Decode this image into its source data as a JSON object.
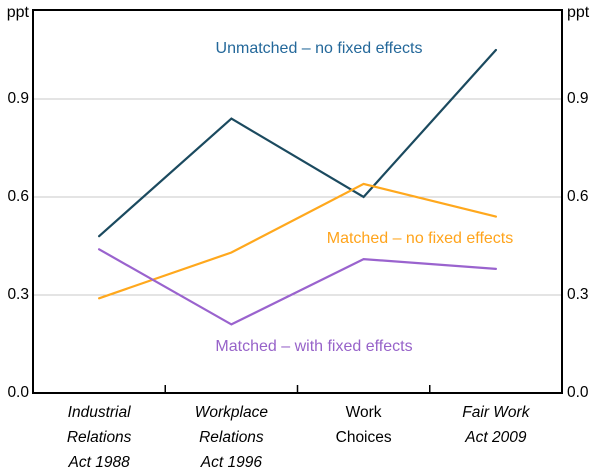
{
  "chart_data": {
    "type": "line",
    "title": "",
    "unit": "ppt",
    "xlabel": "",
    "ylabel": "ppt",
    "ylim": [
      0,
      1.17
    ],
    "grid": "horizontal",
    "yticks": [
      {
        "label": "0.0",
        "value": 0.0
      },
      {
        "label": "0.3",
        "value": 0.3
      },
      {
        "label": "0.6",
        "value": 0.6
      },
      {
        "label": "0.9",
        "value": 0.9
      }
    ],
    "categories": [
      {
        "lines": [
          "Industrial",
          "Relations",
          "Act 1988"
        ],
        "italic": true
      },
      {
        "lines": [
          "Workplace",
          "Relations",
          "Act 1996"
        ],
        "italic": true
      },
      {
        "lines": [
          "Work",
          "Choices"
        ],
        "italic": false
      },
      {
        "lines": [
          "Fair Work",
          "Act 2009"
        ],
        "italic": true
      }
    ],
    "series": [
      {
        "name": "Unmatched – no fixed effects",
        "values": [
          0.48,
          0.84,
          0.6,
          1.05
        ],
        "line_color": "#1B4A5F",
        "label_color": "#24689A"
      },
      {
        "name": "Matched – no fixed effects",
        "values": [
          0.29,
          0.43,
          0.64,
          0.54
        ],
        "line_color": "#FFA81D",
        "label_color": "#FFA41C"
      },
      {
        "name": "Matched – with fixed effects",
        "values": [
          0.44,
          0.21,
          0.41,
          0.38
        ],
        "line_color": "#9A63CE",
        "label_color": "#9763C9"
      }
    ],
    "colors": {
      "gridline": "#C9C9C9",
      "axis": "#000000",
      "text": "#000000",
      "background": "#FFFFFF"
    },
    "legend_position": "inline-labels"
  }
}
